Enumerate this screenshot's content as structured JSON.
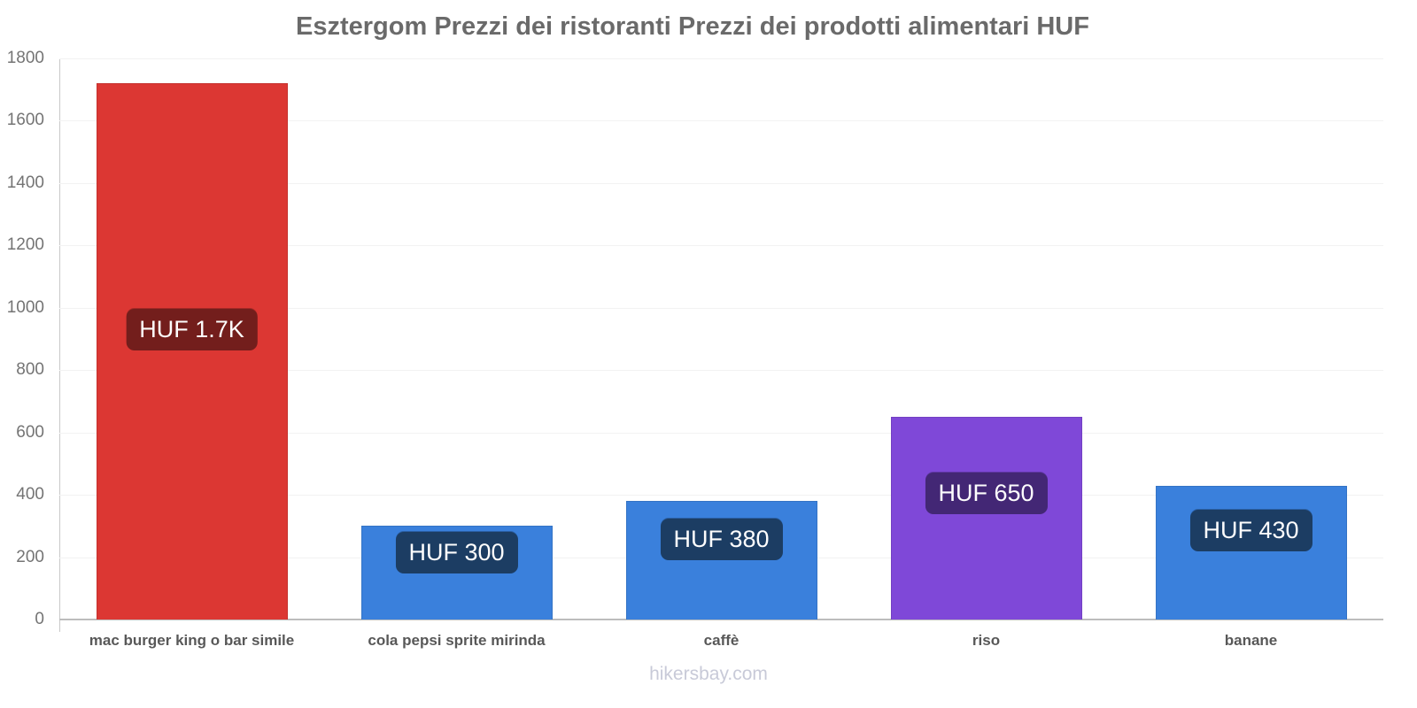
{
  "chart_data": {
    "type": "bar",
    "title": "Esztergom Prezzi dei ristoranti Prezzi dei prodotti alimentari HUF",
    "categories": [
      "mac burger king o bar simile",
      "cola pepsi sprite mirinda",
      "caffè",
      "riso",
      "banane"
    ],
    "values": [
      1720,
      300,
      380,
      650,
      430
    ],
    "value_labels": [
      "HUF 1.7K",
      "HUF 300",
      "HUF 380",
      "HUF 650",
      "HUF 430"
    ],
    "bar_colors": [
      "#dc3733",
      "#3a80dc",
      "#3a80dc",
      "#7f48d8",
      "#3a80dc"
    ],
    "badge_colors": [
      "#731e1c",
      "#1c3d63",
      "#1c3d63",
      "#432775",
      "#1c3d63"
    ],
    "currency": "HUF",
    "ylim": [
      0,
      1800
    ],
    "yticks": [
      0,
      200,
      400,
      600,
      800,
      1000,
      1200,
      1400,
      1600,
      1800
    ],
    "grid": "horizontal",
    "legend": "none",
    "xlabel": "",
    "ylabel": ""
  },
  "footer": {
    "text": "hikersbay.com"
  }
}
